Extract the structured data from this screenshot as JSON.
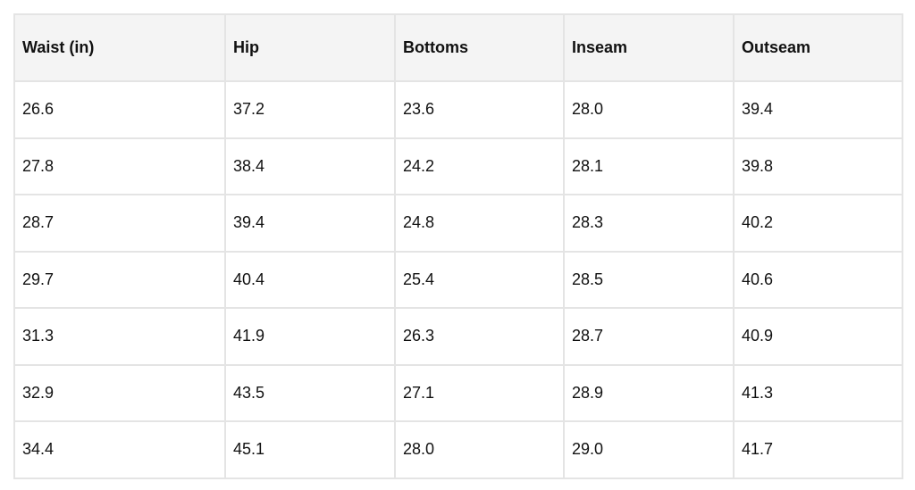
{
  "table": {
    "header": [
      "Waist (in)",
      "Hip",
      "Bottoms",
      "Inseam",
      "Outseam"
    ],
    "rows": [
      [
        "26.6",
        "37.2",
        "23.6",
        "28.0",
        "39.4"
      ],
      [
        "27.8",
        "38.4",
        "24.2",
        "28.1",
        "39.8"
      ],
      [
        "28.7",
        "39.4",
        "24.8",
        "28.3",
        "40.2"
      ],
      [
        "29.7",
        "40.4",
        "25.4",
        "28.5",
        "40.6"
      ],
      [
        "31.3",
        "41.9",
        "26.3",
        "28.7",
        "40.9"
      ],
      [
        "32.9",
        "43.5",
        "27.1",
        "28.9",
        "41.3"
      ],
      [
        "34.4",
        "45.1",
        "28.0",
        "29.0",
        "41.7"
      ]
    ]
  }
}
